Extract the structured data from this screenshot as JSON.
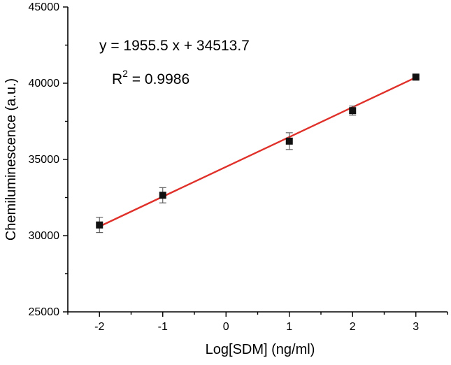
{
  "chart_data": {
    "type": "scatter",
    "title": "",
    "xlabel": "Log[SDM] (ng/ml)",
    "ylabel": "Chemiluminescence (a.u.)",
    "xlim": [
      -2.5,
      3.5
    ],
    "ylim": [
      25000,
      45000
    ],
    "x_ticks": [
      -2,
      -1,
      0,
      1,
      2,
      3
    ],
    "y_ticks": [
      25000,
      30000,
      35000,
      40000,
      45000
    ],
    "x_tick_labels": [
      "-2",
      "-1",
      "0",
      "1",
      "2",
      "3"
    ],
    "y_tick_labels": [
      "25000",
      "30000",
      "35000",
      "40000",
      "45000"
    ],
    "grid": false,
    "points": [
      {
        "x": -2,
        "y": 30700,
        "err": 500
      },
      {
        "x": -1,
        "y": 32650,
        "err": 500
      },
      {
        "x": 1,
        "y": 36200,
        "err": 550
      },
      {
        "x": 2,
        "y": 38200,
        "err": 300
      },
      {
        "x": 3,
        "y": 40400,
        "err": 120
      }
    ],
    "fit_line": {
      "slope": 1955.5,
      "intercept": 34513.7,
      "x_range": [
        -2,
        3
      ],
      "color": "#e0302a"
    },
    "marker_color": "#111111",
    "annotations": {
      "equation": "y = 1955.5 x + 34513.7",
      "r2_prefix": "R",
      "r2_exponent": "2",
      "r2_suffix": " = 0.9986"
    }
  }
}
